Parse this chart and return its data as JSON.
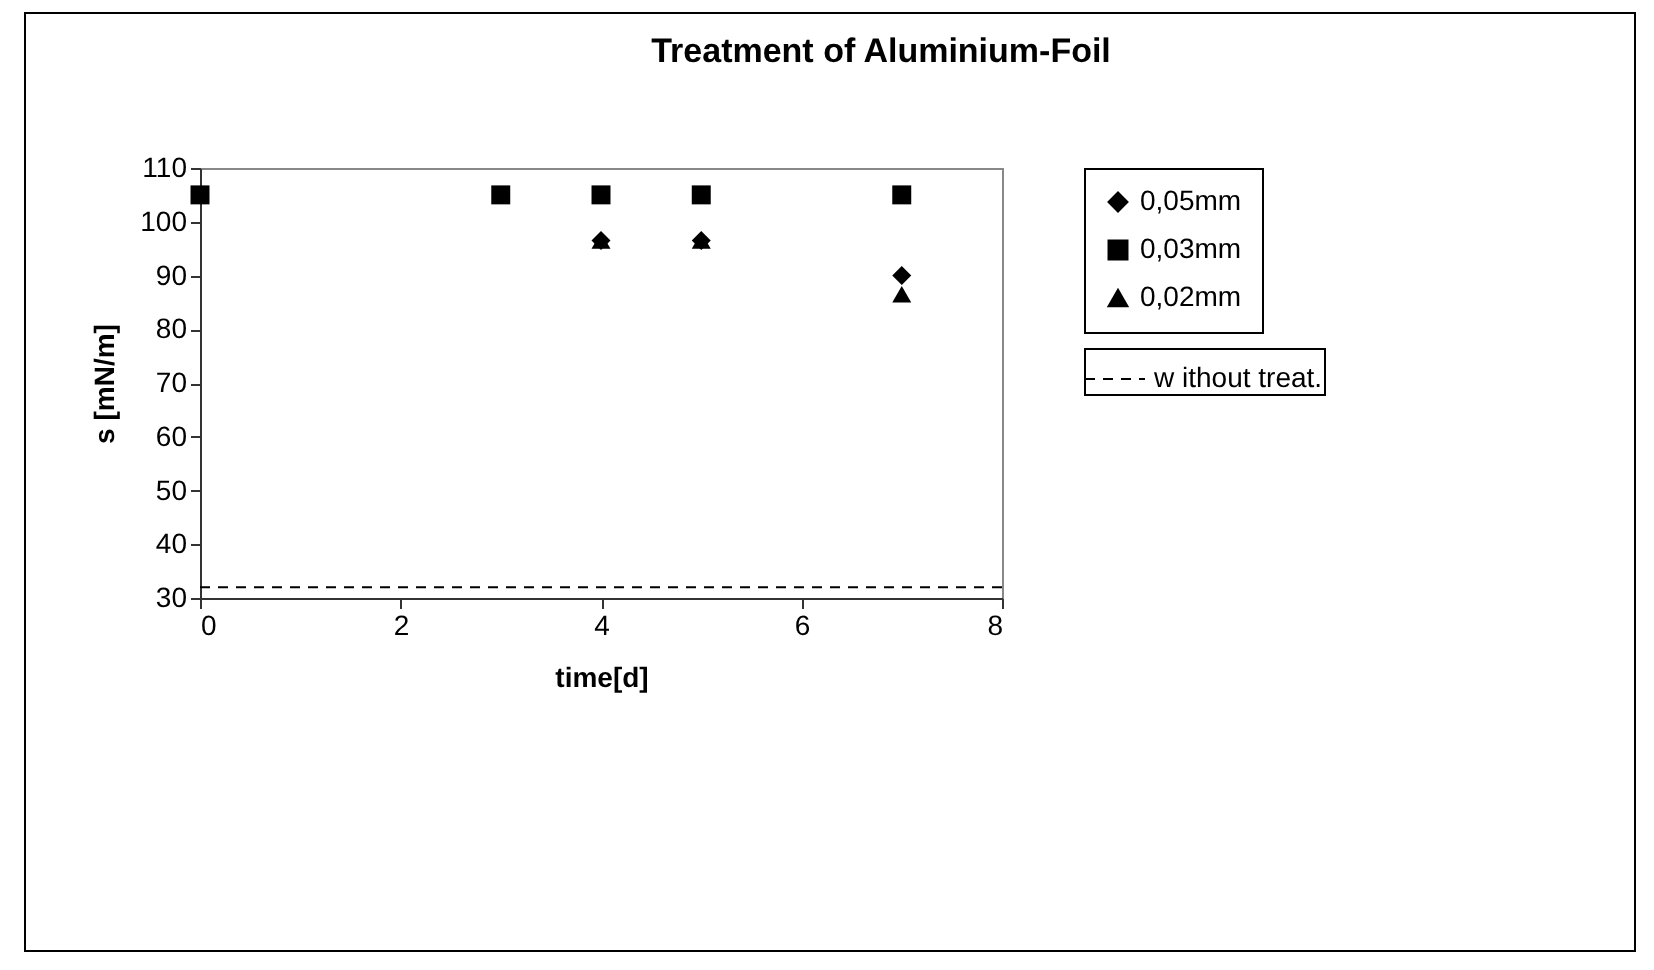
{
  "chart_data": {
    "type": "scatter",
    "title": "Treatment of  Aluminium-Foil",
    "xlabel": "time[d]",
    "ylabel": "s [mN/m]",
    "xlim": [
      0,
      8
    ],
    "xticks": [
      0,
      2,
      4,
      6,
      8
    ],
    "ylim": [
      30,
      110
    ],
    "yticks": [
      30,
      40,
      50,
      60,
      70,
      80,
      90,
      100,
      110
    ],
    "grid": false,
    "legend": "right",
    "series": [
      {
        "name": "0,05mm",
        "color": "#000000",
        "marker": "diamond",
        "x": [
          4,
          5,
          7
        ],
        "values": [
          96.5,
          96.5,
          90
        ]
      },
      {
        "name": "0,03mm",
        "color": "#000000",
        "marker": "square",
        "x": [
          0,
          3,
          4,
          5,
          7
        ],
        "values": [
          105,
          105,
          105,
          105,
          105
        ]
      },
      {
        "name": "0,02mm",
        "color": "#000000",
        "marker": "triangle",
        "x": [
          4,
          5,
          7
        ],
        "values": [
          96.5,
          96.5,
          86.5
        ]
      },
      {
        "name": "w ithout treat.",
        "type": "line",
        "color": "#000000",
        "marker": "none",
        "line_style": "dashed",
        "x": [
          0,
          8
        ],
        "values": [
          32,
          32
        ]
      }
    ]
  }
}
